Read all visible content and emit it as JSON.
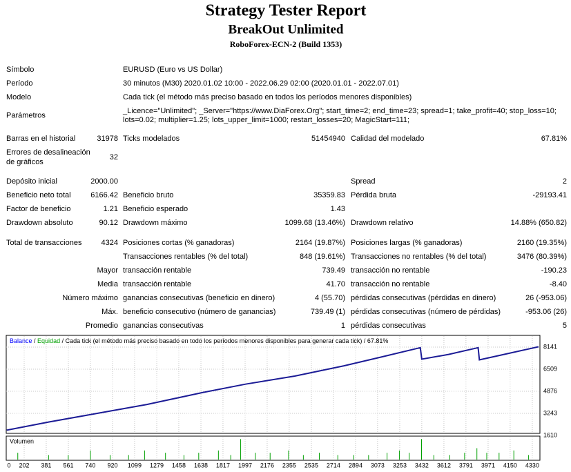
{
  "header": {
    "title": "Strategy Tester Report",
    "expert": "BreakOut Unlimited",
    "server": "RoboForex-ECN-2 (Build 1353)"
  },
  "info": [
    {
      "label": "Símbolo",
      "lines": [
        "EURUSD (Euro vs US Dollar)"
      ]
    },
    {
      "label": "Período",
      "lines": [
        "30 minutos (M30) 2020.01.02 10:00 - 2022.06.29 02:00 (2020.01.01 - 2022.07.01)"
      ]
    },
    {
      "label": "Modelo",
      "lines": [
        "Cada tick (el método más preciso basado en todos los períodos menores disponibles)"
      ]
    },
    {
      "label": "Parámetros",
      "lines": [
        "_Licence=\"Unlimited\"; _Server=\"https://www.DiaForex.Org\"; start_time=2; end_time=23; spread=1; take_profit=40; stop_loss=10;",
        "lots=0.02; multiplier=1.25; lots_upper_limit=1000; restart_losses=20; MagicStart=111;"
      ]
    }
  ],
  "stats": [
    [
      "Barras en el historial",
      "31978",
      "Ticks modelados",
      "51454940",
      "Calidad del modelado",
      "67.81%"
    ],
    [
      [
        "Errores de desalineación",
        "de gráficos"
      ],
      "32",
      null,
      null,
      null,
      null
    ],
    [
      "Depósito inicial",
      "2000.00",
      null,
      null,
      "Spread",
      "2"
    ],
    [
      "Beneficio neto total",
      "6166.42",
      "Beneficio bruto",
      "35359.83",
      "Pérdida bruta",
      "-29193.41"
    ],
    [
      "Factor de beneficio",
      "1.21",
      "Beneficio esperado",
      "1.43",
      null,
      null
    ],
    [
      "Drawdown absoluto",
      "90.12",
      "Drawdown máximo",
      "1099.68 (13.46%)",
      "Drawdown relativo",
      "14.88% (650.82)"
    ],
    [
      "Total de transacciones",
      "4324",
      "Posiciones cortas (% ganadoras)",
      "2164 (19.87%)",
      "Posiciones largas (% ganadoras)",
      "2160 (19.35%)"
    ],
    [
      null,
      null,
      "Transacciones rentables (% del total)",
      "848 (19.61%)",
      "Transacciones no rentables (% del total)",
      "3476 (80.39%)"
    ],
    [
      "Mayor",
      null,
      "transacción rentable",
      "739.49",
      "transacción no rentable",
      "-190.23"
    ],
    [
      "Media",
      null,
      "transacción rentable",
      "41.70",
      "transacción no rentable",
      "-8.40"
    ],
    [
      "Número máximo",
      null,
      "ganancias consecutivas (beneficio en dinero)",
      "4 (55.70)",
      "pérdidas consecutivas (pérdidas en dinero)",
      "26 (-953.06)"
    ],
    [
      "Máx.",
      null,
      "beneficio consecutivo (número de ganancias)",
      "739.49 (1)",
      "pérdidas consecutivas (número de pérdidas)",
      "-953.06 (26)"
    ],
    [
      "Promedio",
      null,
      "ganancias consecutivas",
      "1",
      "pérdidas consecutivas",
      "5"
    ]
  ],
  "chart_data": {
    "type": "line",
    "legend": [
      {
        "text": "Balance",
        "color": "#0000ff"
      },
      {
        "text": "Equidad",
        "color": "#00a000"
      },
      {
        "text": "Cada tick (el método más preciso basado en todo los períodos menores disponibles para generar cada tick)",
        "color": "#000000"
      },
      {
        "text": "67.81%",
        "color": "#000000"
      }
    ],
    "legend_separator": " / ",
    "series": [
      {
        "name": "Balance",
        "color": "#1c1c96",
        "x": [
          60,
          400,
          800,
          1200,
          1650,
          2000,
          2400,
          2800,
          3100,
          3420,
          3432,
          3650,
          3890,
          3900,
          4100,
          4380
        ],
        "values": [
          2000,
          2600,
          3250,
          3900,
          4780,
          5400,
          6000,
          6760,
          7400,
          8100,
          7250,
          7600,
          8100,
          7200,
          7600,
          8166
        ]
      }
    ],
    "xlim": [
      56,
      4392
    ],
    "ylim": [
      1814,
      8958
    ],
    "xticks": [
      0,
      202,
      381,
      561,
      740,
      920,
      1099,
      1279,
      1458,
      1638,
      1817,
      1997,
      2176,
      2355,
      2535,
      2714,
      2894,
      3073,
      3253,
      3432,
      3612,
      3791,
      3971,
      4150,
      4330
    ],
    "yticks": [
      8141,
      6509,
      4876,
      3243,
      1610
    ],
    "grid": true,
    "volume": {
      "label": "Volumen",
      "color": "#00a000",
      "ylim": [
        0,
        10
      ],
      "x": [
        150,
        400,
        560,
        740,
        900,
        1050,
        1180,
        1350,
        1500,
        1620,
        1780,
        1880,
        1960,
        2080,
        2200,
        2350,
        2470,
        2600,
        2750,
        2880,
        3000,
        3150,
        3250,
        3330,
        3430,
        3530,
        3660,
        3780,
        3880,
        3960,
        4060,
        4180,
        4300
      ],
      "values": [
        3,
        2,
        2,
        4,
        2,
        2,
        4,
        3,
        2,
        3,
        4,
        2,
        9,
        3,
        3,
        4,
        2,
        3,
        2,
        2,
        2,
        3,
        4,
        3,
        9,
        2,
        2,
        3,
        5,
        3,
        3,
        4,
        2
      ]
    }
  }
}
